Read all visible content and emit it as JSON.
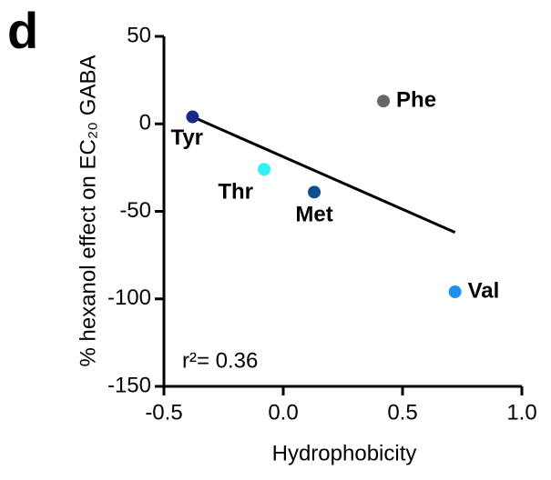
{
  "chart_data": {
    "type": "scatter",
    "panel_label": "d",
    "xlabel": "Hydrophobicity",
    "ylabel": "% hexanol effect on EC₂₀ GABA",
    "xlim": [
      -0.5,
      1.0
    ],
    "xticks": [
      -0.5,
      {
        "value": 0,
        "label": "0.0"
      },
      0.5,
      {
        "value": 1,
        "label": "1.0"
      }
    ],
    "ylim": [
      -150,
      50
    ],
    "yticks": [
      50,
      0,
      -50,
      -100,
      -150
    ],
    "points": [
      {
        "name": "Tyr",
        "color": "#1a2a8a",
        "x": -0.38,
        "y": 4
      },
      {
        "name": "Thr",
        "color": "#33f0f5",
        "x": -0.08,
        "y": -26
      },
      {
        "name": "Met",
        "color": "#0f4f8c",
        "x": 0.13,
        "y": -39
      },
      {
        "name": "Phe",
        "color": "#666666",
        "x": 0.42,
        "y": 13
      },
      {
        "name": "Val",
        "color": "#1e90f0",
        "x": 0.72,
        "y": -96
      }
    ],
    "fit": {
      "x": [
        -0.38,
        0.72
      ],
      "y": [
        4,
        -62
      ]
    },
    "annotation": "r²= 0.36"
  }
}
